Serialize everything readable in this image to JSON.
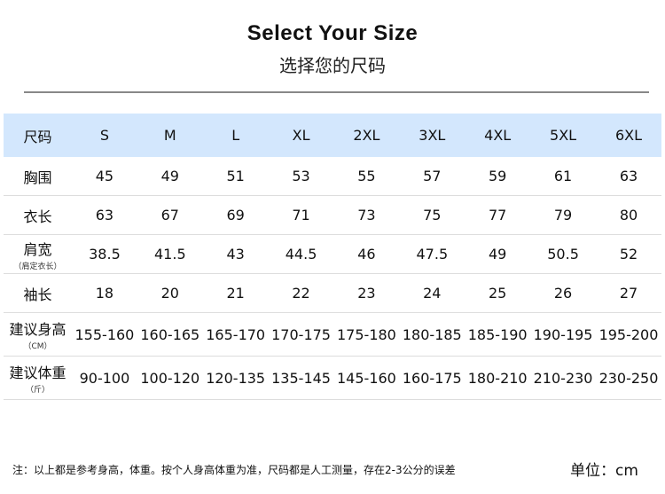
{
  "header": {
    "title": "Select Your Size",
    "subtitle": "选择您的尺码"
  },
  "table": {
    "columns": [
      "尺码",
      "S",
      "M",
      "L",
      "XL",
      "2XL",
      "3XL",
      "4XL",
      "5XL",
      "6XL"
    ],
    "rows": [
      {
        "label": "胸围",
        "values": [
          "45",
          "49",
          "51",
          "53",
          "55",
          "57",
          "59",
          "61",
          "63"
        ]
      },
      {
        "label": "衣长",
        "values": [
          "63",
          "67",
          "69",
          "71",
          "73",
          "75",
          "77",
          "79",
          "80"
        ]
      },
      {
        "label": "肩宽",
        "note": "（肩定衣长）",
        "values": [
          "38.5",
          "41.5",
          "43",
          "44.5",
          "46",
          "47.5",
          "49",
          "50.5",
          "52"
        ]
      },
      {
        "label": "袖长",
        "values": [
          "18",
          "20",
          "21",
          "22",
          "23",
          "24",
          "25",
          "26",
          "27"
        ]
      },
      {
        "label": "建议身高",
        "note": "（CM）",
        "values": [
          "155-160",
          "160-165",
          "165-170",
          "170-175",
          "175-180",
          "180-185",
          "185-190",
          "190-195",
          "195-200"
        ]
      },
      {
        "label": "建议体重",
        "note": "（斤）",
        "values": [
          "90-100",
          "100-120",
          "120-135",
          "135-145",
          "145-160",
          "160-175",
          "180-210",
          "210-230",
          "230-250"
        ]
      }
    ]
  },
  "footer": {
    "note": "注：以上都是参考身高，体重。按个人身高体重为准，尺码都是人工测量，存在2-3公分的误差",
    "unit": "单位：cm"
  },
  "colors": {
    "header_bg": "#d3e7fd"
  }
}
